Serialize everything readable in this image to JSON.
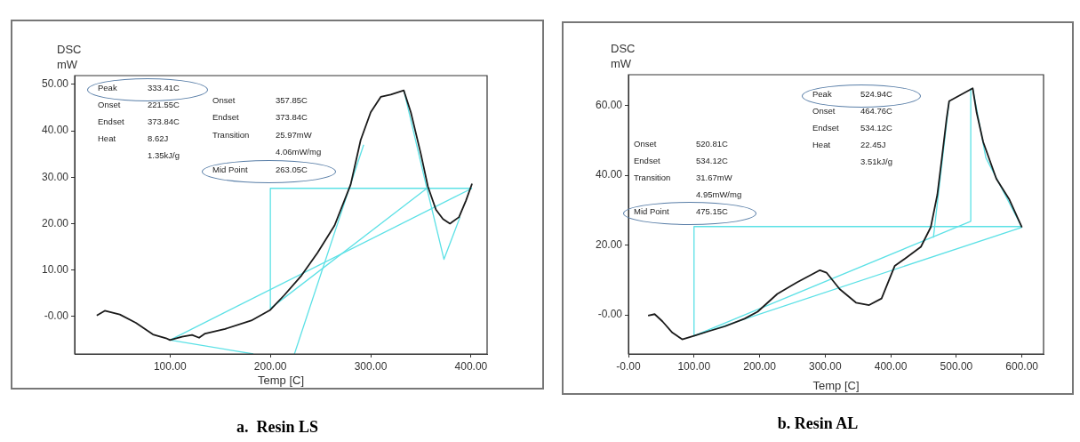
{
  "chart_data": [
    {
      "type": "line",
      "title": "a.  Resin LS",
      "xlabel": "Temp [C]",
      "ylabel": "DSC\nmW",
      "grid": false,
      "legend": false,
      "marker": "none",
      "line_style": "solid",
      "xlim": [
        5,
        416
      ],
      "xticks": [
        {
          "value": 100,
          "label": "100.00"
        },
        {
          "value": 200,
          "label": "200.00"
        },
        {
          "value": 300,
          "label": "300.00"
        },
        {
          "value": 400,
          "label": "400.00"
        }
      ],
      "ylim": [
        -8.1,
        51.9
      ],
      "yticks": [
        {
          "value": 0,
          "label": "-0.00"
        },
        {
          "value": 10,
          "label": "10.00"
        },
        {
          "value": 20,
          "label": "20.00"
        },
        {
          "value": 30,
          "label": "30.00"
        },
        {
          "value": 40,
          "label": "40.00"
        },
        {
          "value": 50,
          "label": "50.00"
        }
      ],
      "annotations": [
        "Peak 333.41C",
        "Onset 221.55C",
        "Endset 373.84C",
        "Heat 8.62J",
        "1.35kJ/g",
        "Onset 357.85C",
        "Endset 373.84C",
        "Transition 25.97mW",
        "4.06mW/mg",
        "Mid Point 263.05C"
      ],
      "series": [
        {
          "color": "#1a1a1a",
          "x": [
            27,
            35,
            50,
            66,
            83,
            96,
            100,
            112,
            122,
            129,
            135,
            155,
            181,
            200,
            214,
            231,
            247,
            264,
            280,
            290,
            300,
            310,
            320,
            333,
            340,
            350,
            357,
            365,
            372,
            379,
            388,
            395,
            401
          ],
          "values": [
            0.2,
            1.2,
            0.4,
            -1.4,
            -3.9,
            -4.7,
            -5.1,
            -4.4,
            -4.0,
            -4.6,
            -3.7,
            -2.7,
            -0.9,
            1.4,
            4.6,
            8.8,
            13.7,
            19.6,
            28.4,
            38,
            44,
            47.3,
            47.8,
            48.7,
            44,
            35,
            28,
            23,
            21,
            20,
            21.4,
            25,
            28.6
          ]
        },
        {
          "color": "#5ce1e6",
          "x": [
            200,
            200,
            401
          ],
          "values": [
            1.4,
            27.6,
            27.6
          ]
        },
        {
          "color": "#5ce1e6",
          "x": [
            100,
            401
          ],
          "values": [
            -5.1,
            27.6
          ]
        },
        {
          "color": "#5ce1e6",
          "x": [
            200,
            356
          ],
          "values": [
            1.7,
            27.6
          ]
        },
        {
          "color": "#5ce1e6",
          "x": [
            224,
            293
          ],
          "values": [
            -8.1,
            37
          ]
        },
        {
          "color": "#5ce1e6",
          "x": [
            100,
            183
          ],
          "values": [
            -5.1,
            -8.1
          ]
        },
        {
          "color": "#5ce1e6",
          "x": [
            333,
            356,
            373,
            389
          ],
          "values": [
            48.7,
            27.6,
            12.3,
            21.4
          ]
        }
      ]
    },
    {
      "type": "line",
      "title": "b. Resin AL",
      "xlabel": "Temp [C]",
      "ylabel": "DSC\nmW",
      "grid": false,
      "legend": false,
      "marker": "none",
      "line_style": "solid",
      "xlim": [
        0,
        633
      ],
      "xticks": [
        {
          "value": 0,
          "label": "-0.00"
        },
        {
          "value": 100,
          "label": "100.00"
        },
        {
          "value": 200,
          "label": "200.00"
        },
        {
          "value": 300,
          "label": "300.00"
        },
        {
          "value": 400,
          "label": "400.00"
        },
        {
          "value": 500,
          "label": "500.00"
        },
        {
          "value": 600,
          "label": "600.00"
        }
      ],
      "ylim": [
        -11.2,
        68.8
      ],
      "yticks": [
        {
          "value": 0,
          "label": "-0.00"
        },
        {
          "value": 20,
          "label": "20.00"
        },
        {
          "value": 40,
          "label": "40.00"
        },
        {
          "value": 60,
          "label": "60.00"
        }
      ],
      "annotations": [
        "Peak 524.94C",
        "Onset 464.76C",
        "Endset 534.12C",
        "Heat 22.45J",
        "3.51kJ/g",
        "Onset 520.81C",
        "Endset 534.12C",
        "Transition 31.67mW",
        "4.95mW/mg",
        "Mid Point 475.15C"
      ],
      "series": [
        {
          "color": "#1a1a1a",
          "x": [
            30,
            40,
            52,
            67,
            82,
            100,
            122,
            147,
            177,
            197,
            227,
            257,
            292,
            302,
            322,
            347,
            367,
            386,
            406,
            426,
            446,
            461,
            471,
            478,
            485,
            489,
            525,
            531,
            541,
            561,
            581,
            600
          ],
          "values": [
            -0.2,
            0.2,
            -1.9,
            -5.1,
            -7.0,
            -6.0,
            -4.7,
            -3.3,
            -1.1,
            0.9,
            6.0,
            9.3,
            12.8,
            12.1,
            7.4,
            3.5,
            2.8,
            4.7,
            14.0,
            16.7,
            19.5,
            25.1,
            34.4,
            45,
            56,
            61.2,
            64.9,
            57.9,
            49.5,
            39,
            33,
            25.1
          ]
        },
        {
          "color": "#5ce1e6",
          "x": [
            100,
            100,
            600
          ],
          "values": [
            -6.0,
            25.3,
            25.3
          ]
        },
        {
          "color": "#5ce1e6",
          "x": [
            100,
            600
          ],
          "values": [
            -6.0,
            25.1
          ]
        },
        {
          "color": "#5ce1e6",
          "x": [
            100,
            522,
            522
          ],
          "values": [
            -6.0,
            26.8,
            64.9
          ]
        },
        {
          "color": "#5ce1e6",
          "x": [
            465,
            489
          ],
          "values": [
            22.1,
            61.2
          ]
        },
        {
          "color": "#5ce1e6",
          "x": [
            525,
            545,
            600
          ],
          "values": [
            64.9,
            45,
            25.1
          ]
        }
      ]
    }
  ]
}
